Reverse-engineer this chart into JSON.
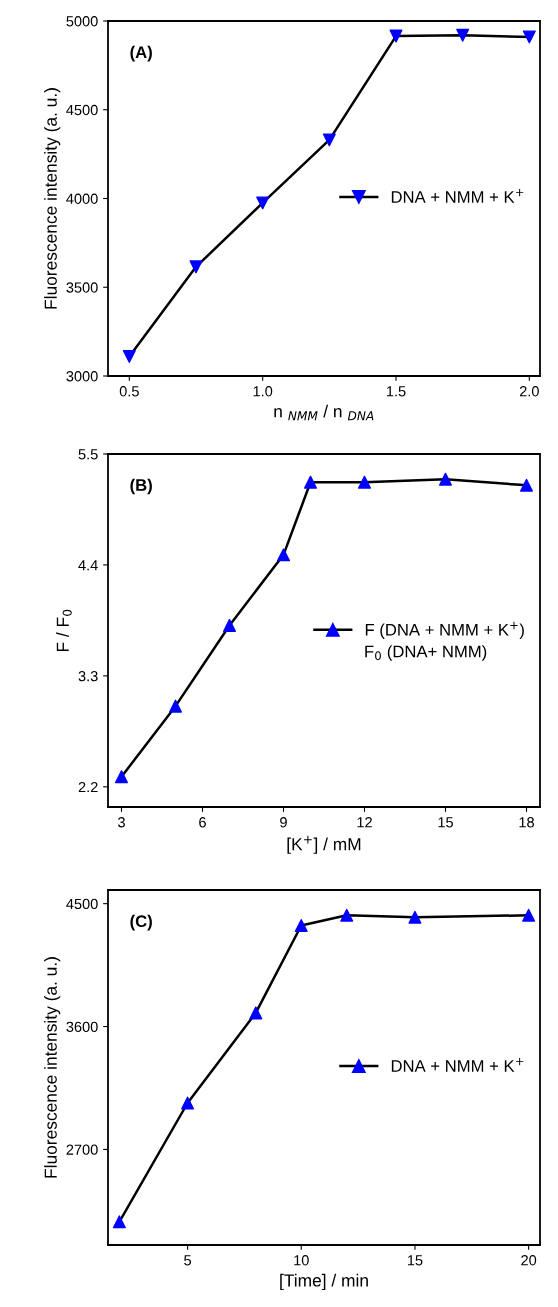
{
  "chart_data": [
    {
      "type": "line",
      "annotations": [
        "(A)"
      ],
      "xlabel": "n $_{NMM}$ / n $_{DNA}$",
      "ylabel": "Fluorescence intensity (a. u.)",
      "x": [
        0.5,
        0.75,
        1.0,
        1.25,
        1.5,
        1.75,
        2.0
      ],
      "series": [
        {
          "name": "DNA + NMM + K$^{+}$",
          "color": "#0000ff",
          "values": [
            3110,
            3615,
            3975,
            4330,
            4915,
            4920,
            4910
          ]
        }
      ],
      "xlim": [
        0.42,
        2.04
      ],
      "xticks": [
        {
          "value": 0.5,
          "label": "0.5"
        },
        {
          "value": 1.0,
          "label": "1.0"
        },
        {
          "value": 1.5,
          "label": "1.5"
        },
        {
          "value": 2.0,
          "label": "2.0"
        }
      ],
      "ylim": [
        3000,
        5000
      ],
      "yticks": [
        3000,
        3500,
        4000,
        4500,
        5000
      ],
      "marker": "triangle_down",
      "legend": "center right",
      "grid": false
    },
    {
      "type": "line",
      "annotations": [
        "(B)",
        "F$_{0}$ (DNA+ NMM)"
      ],
      "xlabel": "[K$^{+}$] / mM",
      "ylabel": "F / F$_{0}$",
      "x": [
        3,
        5,
        7,
        9,
        10,
        12,
        15,
        18
      ],
      "series": [
        {
          "name": "F (DNA + NMM + K$^{+}$)",
          "color": "#0000ff",
          "values": [
            2.3,
            3.0,
            3.8,
            4.5,
            5.22,
            5.22,
            5.25,
            5.19
          ]
        }
      ],
      "xlim": [
        2.5,
        18.5
      ],
      "xticks": [
        3,
        6,
        9,
        12,
        15,
        18
      ],
      "ylim": [
        2.0,
        5.5
      ],
      "yticks": [
        2.2,
        3.3,
        4.4,
        5.5
      ],
      "marker": "triangle",
      "legend": "center right",
      "grid": false
    },
    {
      "type": "line",
      "annotations": [
        "(C)"
      ],
      "xlabel": "[Time] / min",
      "ylabel": "Fluorescence intensity (a. u.)",
      "x": [
        2,
        5,
        8,
        10,
        12,
        15,
        20
      ],
      "series": [
        {
          "name": "DNA + NMM + K$^{+}$",
          "color": "#0000ff",
          "values": [
            2170,
            3040,
            3700,
            4340,
            4415,
            4400,
            4415
          ]
        }
      ],
      "xlim": [
        1.5,
        20.5
      ],
      "xticks": [
        5,
        10,
        15,
        20
      ],
      "ylim": [
        2000,
        4600
      ],
      "yticks": [
        2700,
        3600,
        4500
      ],
      "marker": "triangle",
      "legend": "center right",
      "grid": false
    }
  ]
}
